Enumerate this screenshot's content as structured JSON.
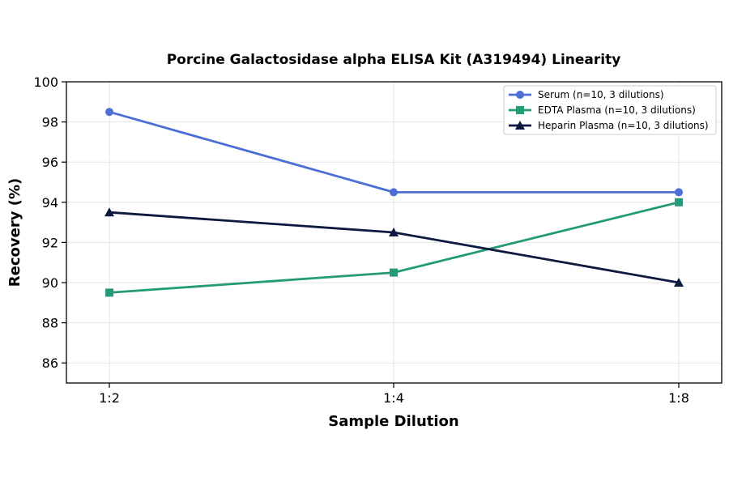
{
  "chart_data": {
    "type": "line",
    "title": "Porcine Galactosidase alpha ELISA Kit (A319494) Linearity",
    "xlabel": "Sample Dilution",
    "ylabel": "Recovery (%)",
    "categories": [
      "1:2",
      "1:4",
      "1:8"
    ],
    "ylim": [
      85,
      100
    ],
    "yticks": [
      86,
      88,
      90,
      92,
      94,
      96,
      98,
      100
    ],
    "grid": true,
    "legend_position": "top-right",
    "series": [
      {
        "name": "Serum (n=10, 3 dilutions)",
        "values": [
          98.5,
          94.5,
          94.5
        ],
        "color": "#4c6fd6",
        "marker": "circle"
      },
      {
        "name": "EDTA Plasma (n=10, 3 dilutions)",
        "values": [
          89.5,
          90.5,
          94.0
        ],
        "color": "#249a78",
        "marker": "square"
      },
      {
        "name": "Heparin Plasma (n=10, 3 dilutions)",
        "values": [
          93.5,
          92.5,
          90.0
        ],
        "color": "#0d1a3f",
        "marker": "triangle"
      }
    ]
  }
}
